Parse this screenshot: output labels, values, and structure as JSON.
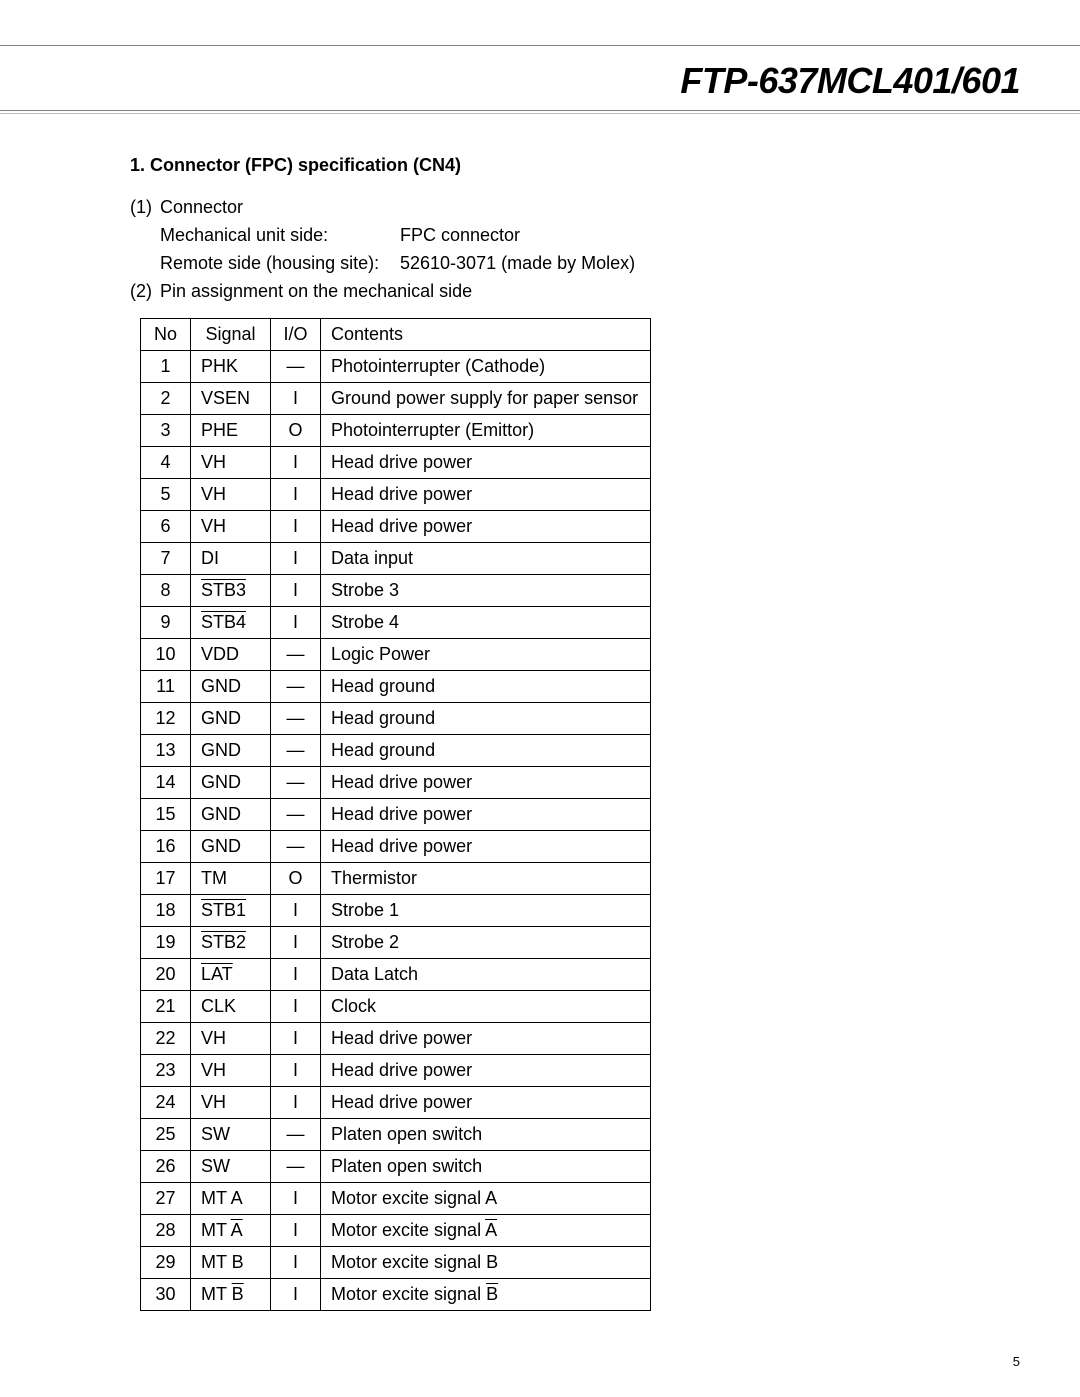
{
  "header": {
    "title": "FTP-637MCL401/601"
  },
  "section": {
    "title": "1. Connector (FPC) specification (CN4)",
    "item1_num": "(1)",
    "item1_label": "Connector",
    "pair1_label": "Mechanical unit side:",
    "pair1_value": "FPC connector",
    "pair2_label": "Remote side (housing site):",
    "pair2_value": "52610-3071 (made by Molex)",
    "item2_num": "(2)",
    "item2_label": "Pin assignment on the mechanical side"
  },
  "table": {
    "headers": {
      "no": "No",
      "signal": "Signal",
      "io": "I/O",
      "contents": "Contents"
    },
    "rows": [
      {
        "no": "1",
        "signal": "PHK",
        "io": "—",
        "contents": "Photointerrupter  (Cathode)"
      },
      {
        "no": "2",
        "signal": "VSEN",
        "io": "I",
        "contents": "Ground power supply for paper sensor"
      },
      {
        "no": "3",
        "signal": "PHE",
        "io": "O",
        "contents": "Photointerrupter  (Emittor)"
      },
      {
        "no": "4",
        "signal": "VH",
        "io": "I",
        "contents": "Head drive power"
      },
      {
        "no": "5",
        "signal": "VH",
        "io": "I",
        "contents": "Head drive power"
      },
      {
        "no": "6",
        "signal": "VH",
        "io": "I",
        "contents": "Head drive power"
      },
      {
        "no": "7",
        "signal": "DI",
        "io": "I",
        "contents": "Data input"
      },
      {
        "no": "8",
        "signal_html": "<span class='overline'>STB3</span>",
        "io": "I",
        "contents": "Strobe 3"
      },
      {
        "no": "9",
        "signal_html": "<span class='overline'>STB4</span>",
        "io": "I",
        "contents": "Strobe 4"
      },
      {
        "no": "10",
        "signal": "VDD",
        "io": "—",
        "contents": "Logic Power"
      },
      {
        "no": "11",
        "signal": "GND",
        "io": "—",
        "contents": "Head ground"
      },
      {
        "no": "12",
        "signal": "GND",
        "io": "—",
        "contents": "Head ground"
      },
      {
        "no": "13",
        "signal": "GND",
        "io": "—",
        "contents": "Head ground"
      },
      {
        "no": "14",
        "signal": "GND",
        "io": "—",
        "contents": "Head drive power"
      },
      {
        "no": "15",
        "signal": "GND",
        "io": "—",
        "contents": "Head drive power"
      },
      {
        "no": "16",
        "signal": "GND",
        "io": "—",
        "contents": "Head drive power"
      },
      {
        "no": "17",
        "signal": "TM",
        "io": "O",
        "contents": "Thermistor"
      },
      {
        "no": "18",
        "signal_html": "<span class='overline'>STB1</span>",
        "io": "I",
        "contents": "Strobe 1"
      },
      {
        "no": "19",
        "signal_html": "<span class='overline'>STB2</span>",
        "io": "I",
        "contents": "Strobe 2"
      },
      {
        "no": "20",
        "signal_html": "<span class='overline'>LAT</span>",
        "io": "I",
        "contents": "Data Latch"
      },
      {
        "no": "21",
        "signal": "CLK",
        "io": "I",
        "contents": "Clock"
      },
      {
        "no": "22",
        "signal": "VH",
        "io": "I",
        "contents": "Head drive power"
      },
      {
        "no": "23",
        "signal": "VH",
        "io": "I",
        "contents": "Head drive power"
      },
      {
        "no": "24",
        "signal": "VH",
        "io": "I",
        "contents": "Head drive power"
      },
      {
        "no": "25",
        "signal": "SW",
        "io": "—",
        "contents": "Platen open switch"
      },
      {
        "no": "26",
        "signal": "SW",
        "io": "—",
        "contents": "Platen open switch"
      },
      {
        "no": "27",
        "signal": "MT A",
        "io": "I",
        "contents": "Motor excite signal A"
      },
      {
        "no": "28",
        "signal_html": "MT <span class='overline'>A</span>",
        "io": "I",
        "contents_html": "Motor excite signal <span class='overline'>A</span>"
      },
      {
        "no": "29",
        "signal": "MT B",
        "io": "I",
        "contents": "Motor excite signal B"
      },
      {
        "no": "30",
        "signal_html": "MT <span class='overline'>B</span>",
        "io": "I",
        "contents_html": "Motor excite signal <span class='overline'>B</span>"
      }
    ]
  },
  "page_number": "5"
}
